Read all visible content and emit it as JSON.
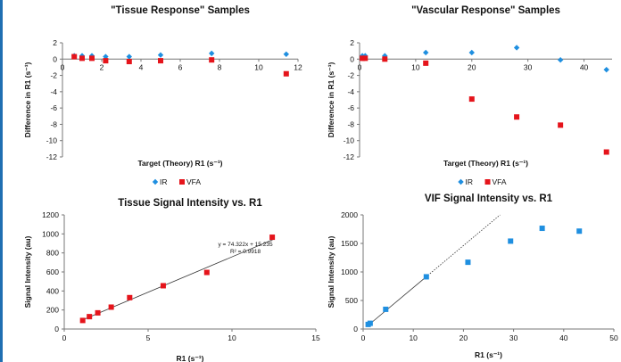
{
  "colors": {
    "ir": "#1f8fe0",
    "vfa": "#e5141b",
    "lin": "#1f8fe0",
    "trend": "#333333"
  },
  "chart_data": [
    {
      "id": "c1",
      "type": "scatter",
      "title": "\"Tissue Response\" Samples",
      "xlabel": "Target (Theory) R1 (s⁻¹)",
      "ylabel": "Difference in R1 (s⁻¹)",
      "xlim": [
        0,
        12
      ],
      "ylim": [
        -12,
        2
      ],
      "xticks": [
        0,
        2,
        4,
        6,
        8,
        10,
        12
      ],
      "yticks": [
        2,
        0,
        -2,
        -4,
        -6,
        -8,
        -10,
        -12
      ],
      "legend": "bottom",
      "series": [
        {
          "name": "IR",
          "marker": "diamond",
          "color_key": "ir",
          "points": [
            [
              0.6,
              0.4
            ],
            [
              1.0,
              0.4
            ],
            [
              1.5,
              0.4
            ],
            [
              2.2,
              0.3
            ],
            [
              3.4,
              0.3
            ],
            [
              5.0,
              0.5
            ],
            [
              7.6,
              0.7
            ],
            [
              11.4,
              0.6
            ]
          ]
        },
        {
          "name": "VFA",
          "marker": "square",
          "color_key": "vfa",
          "points": [
            [
              0.6,
              0.3
            ],
            [
              1.0,
              0.1
            ],
            [
              1.5,
              0.1
            ],
            [
              2.2,
              -0.2
            ],
            [
              3.4,
              -0.3
            ],
            [
              5.0,
              -0.2
            ],
            [
              7.6,
              -0.1
            ],
            [
              11.4,
              -1.8
            ]
          ]
        }
      ]
    },
    {
      "id": "c2",
      "type": "scatter",
      "title": "\"Vascular Response\" Samples",
      "xlabel": "Target (Theory) R1 (s⁻¹)",
      "ylabel": "Difference in R1 (s⁻¹)",
      "xlim": [
        0,
        45
      ],
      "ylim": [
        -12,
        2
      ],
      "xticks": [
        0,
        10,
        20,
        30,
        40
      ],
      "yticks": [
        2,
        0,
        -2,
        -4,
        -6,
        -8,
        -10,
        -12
      ],
      "legend": "bottom",
      "series": [
        {
          "name": "IR",
          "marker": "diamond",
          "color_key": "ir",
          "points": [
            [
              0.5,
              0.4
            ],
            [
              1.0,
              0.4
            ],
            [
              4.5,
              0.4
            ],
            [
              11.8,
              0.8
            ],
            [
              20.0,
              0.8
            ],
            [
              28.0,
              1.4
            ],
            [
              35.8,
              -0.1
            ],
            [
              44.0,
              -1.3
            ]
          ]
        },
        {
          "name": "VFA",
          "marker": "square",
          "color_key": "vfa",
          "points": [
            [
              0.5,
              0.1
            ],
            [
              1.0,
              0.1
            ],
            [
              4.5,
              0.0
            ],
            [
              11.8,
              -0.5
            ],
            [
              20.0,
              -4.9
            ],
            [
              28.0,
              -7.1
            ],
            [
              35.8,
              -8.1
            ],
            [
              44.0,
              -11.4
            ]
          ]
        }
      ]
    },
    {
      "id": "c3",
      "type": "scatter",
      "title": "Tissue Signal Intensity vs. R1",
      "xlabel": "R1 (s⁻¹)",
      "ylabel": "Signal Intensity (au)",
      "xlim": [
        0,
        15
      ],
      "ylim": [
        0,
        1200
      ],
      "xticks": [
        0,
        5,
        10,
        15
      ],
      "yticks": [
        0,
        200,
        400,
        600,
        800,
        1000,
        1200
      ],
      "annotation": [
        "y = 74.322x + 15.235",
        "R² = 0.9918"
      ],
      "trendline": {
        "slope": 74.322,
        "intercept": 15.235,
        "x_from": 1.0,
        "x_to": 12.5
      },
      "series": [
        {
          "name": "",
          "marker": "square",
          "color_key": "vfa",
          "points": [
            [
              1.1,
              90
            ],
            [
              1.5,
              130
            ],
            [
              2.0,
              170
            ],
            [
              2.8,
              230
            ],
            [
              3.9,
              330
            ],
            [
              5.9,
              455
            ],
            [
              8.5,
              595
            ],
            [
              12.4,
              965
            ]
          ]
        }
      ]
    },
    {
      "id": "c4",
      "type": "scatter",
      "title": "VIF Signal Intensity vs. R1",
      "xlabel": "R1 (s⁻¹)",
      "ylabel": "Signal Intensity (au)",
      "xlim": [
        0,
        50
      ],
      "ylim": [
        0,
        2000
      ],
      "xticks": [
        0,
        10,
        20,
        30,
        40,
        50
      ],
      "yticks": [
        0,
        500,
        1000,
        1500,
        2000
      ],
      "trendline": {
        "slope": 73.6,
        "intercept": -10,
        "x_from": 0.8,
        "x_to": 12.5,
        "dash_to": 27.3
      },
      "series": [
        {
          "name": "",
          "marker": "square",
          "color_key": "lin",
          "points": [
            [
              1.0,
              80
            ],
            [
              1.4,
              100
            ],
            [
              4.5,
              345
            ],
            [
              12.6,
              915
            ],
            [
              20.9,
              1170
            ],
            [
              29.4,
              1540
            ],
            [
              35.7,
              1765
            ],
            [
              43.1,
              1715
            ]
          ]
        }
      ]
    }
  ]
}
